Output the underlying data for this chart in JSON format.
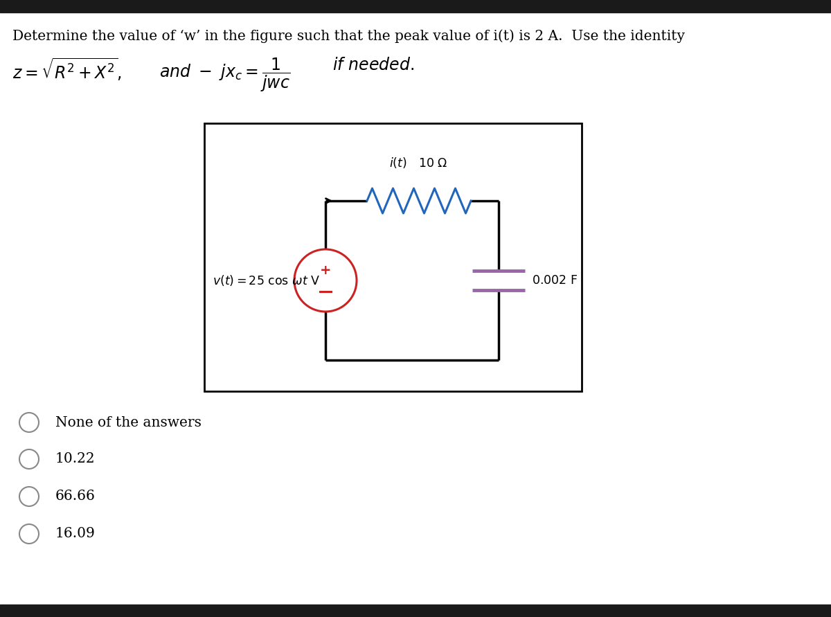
{
  "bg_color": "#ffffff",
  "border_color": "#1a1a1a",
  "choices": [
    "None of the answers",
    "10.22",
    "66.66",
    "16.09"
  ],
  "resistor_color": "#2266bb",
  "capacitor_color": "#9966aa",
  "source_circle_color": "#cc2222",
  "circuit_line_color": "#000000",
  "title_fontsize": 14.5,
  "choice_fontsize": 14.5
}
